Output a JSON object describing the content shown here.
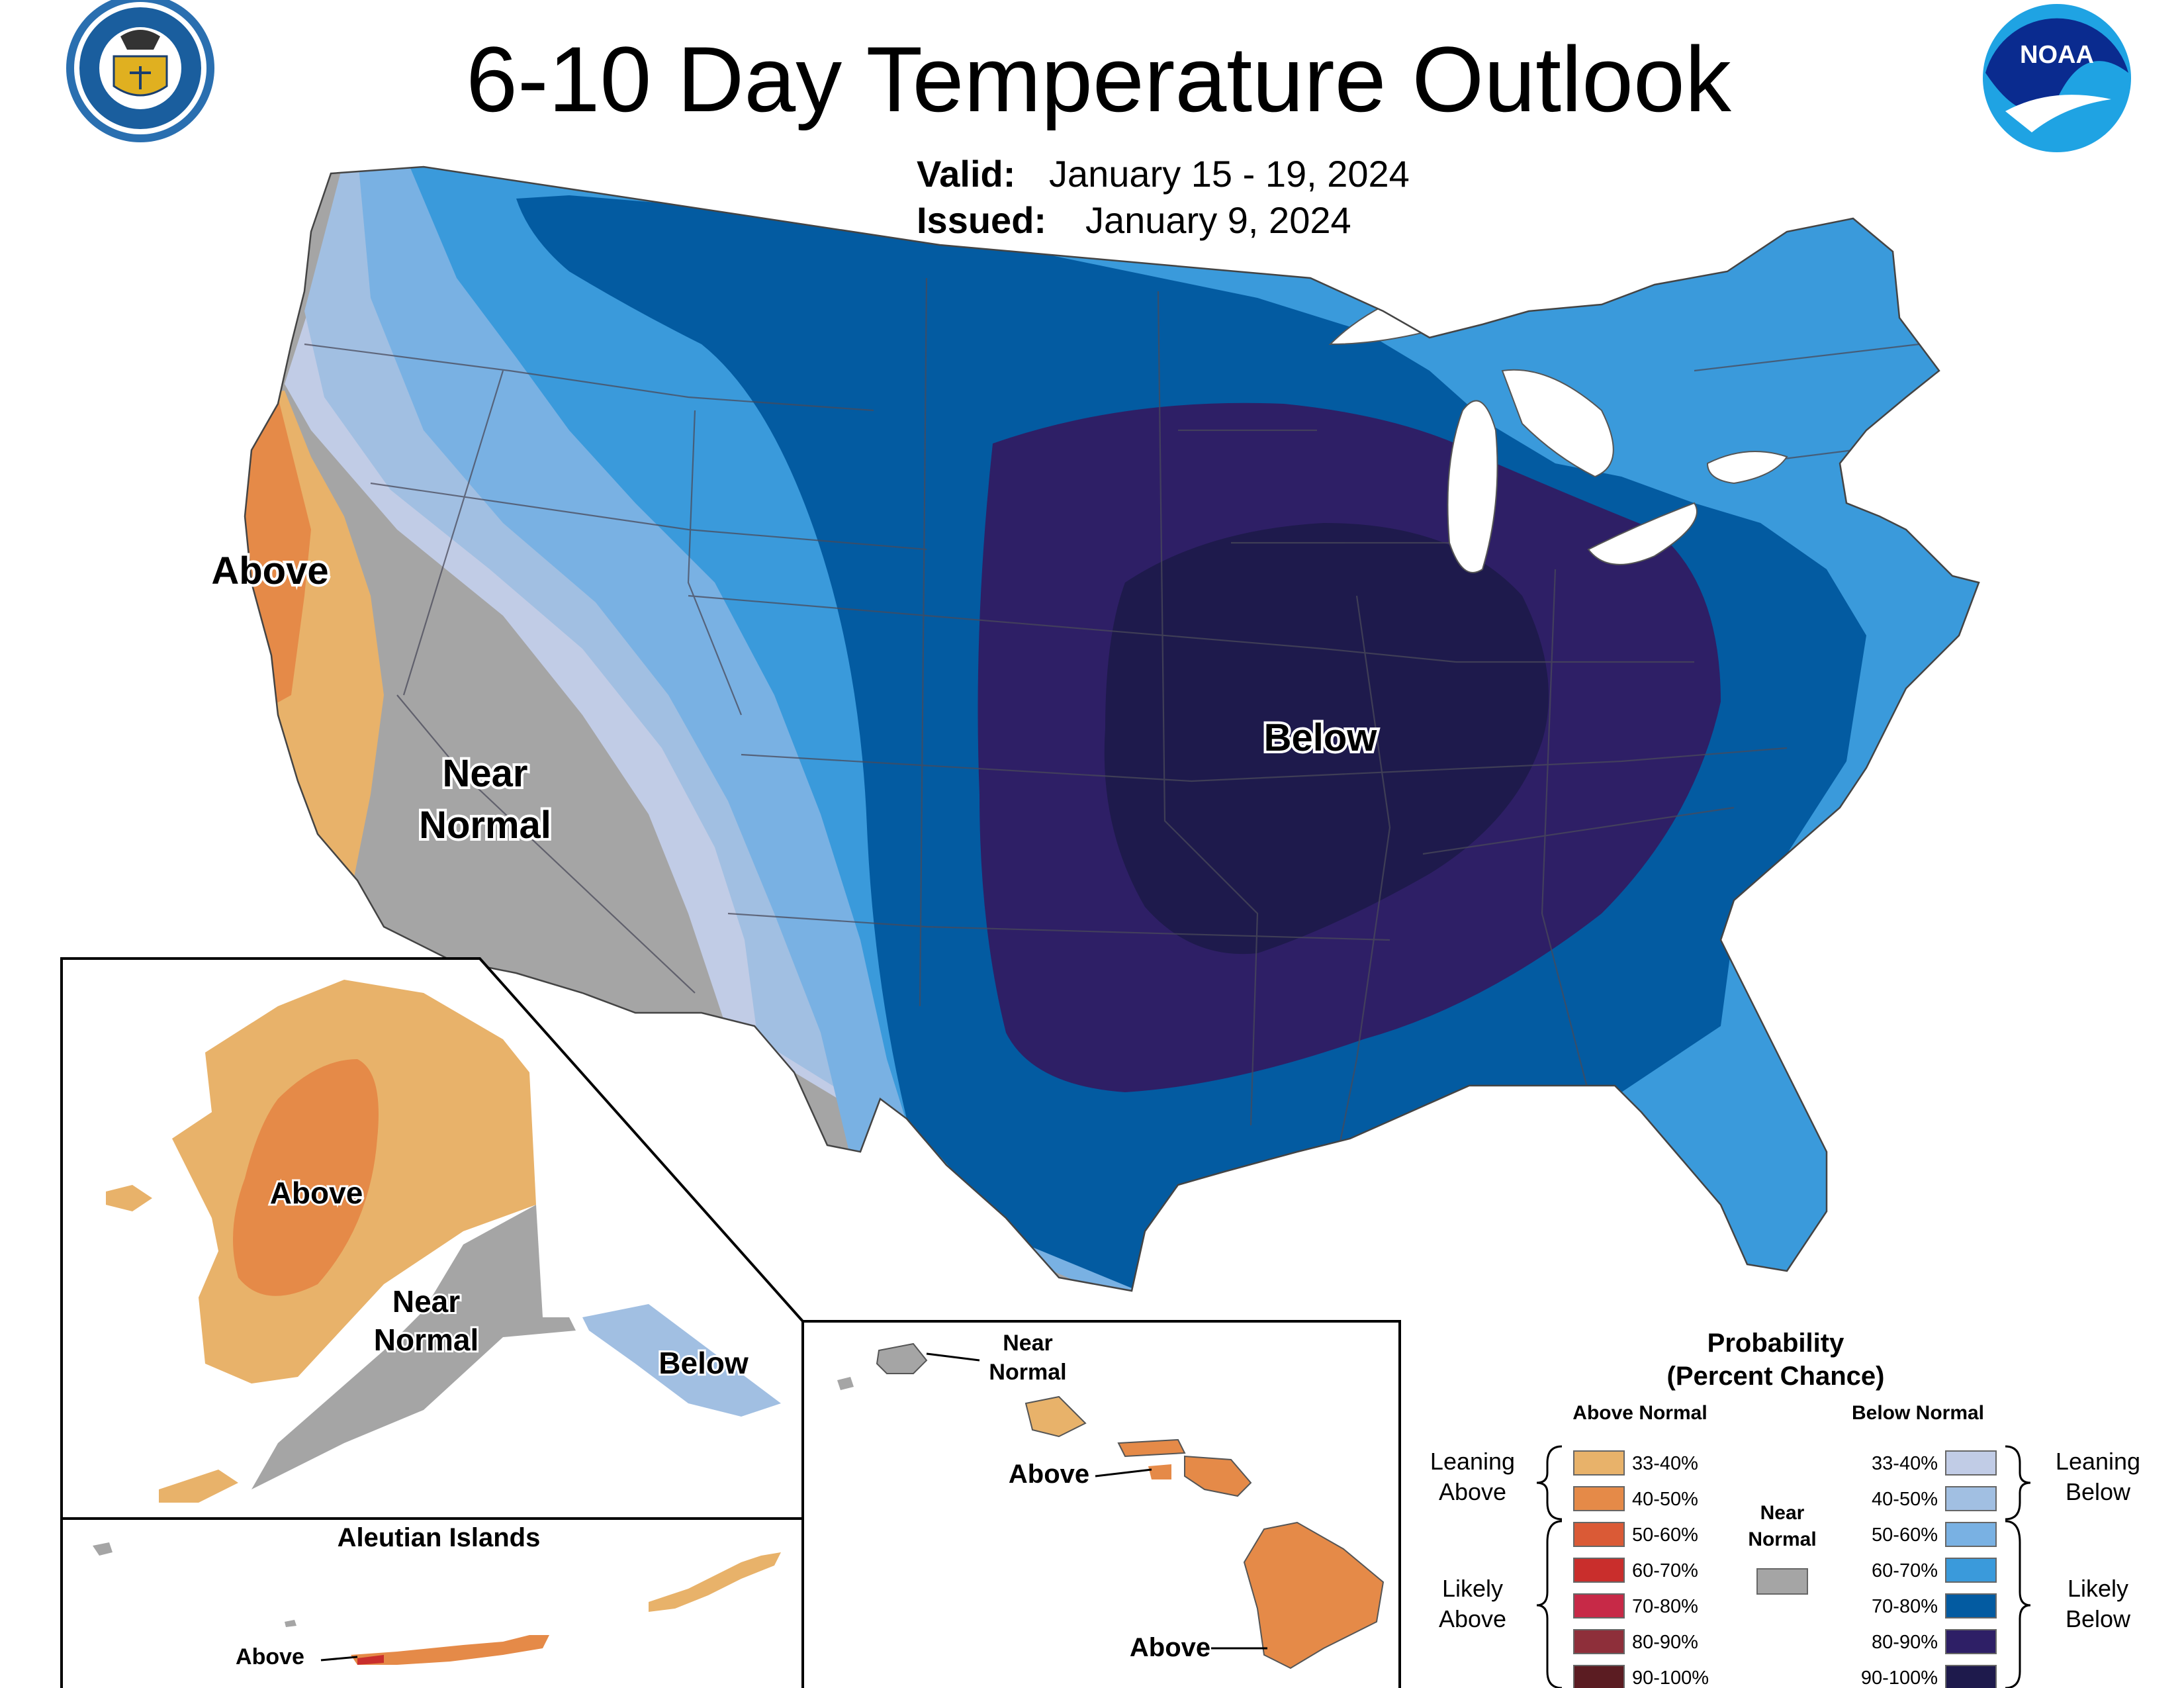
{
  "title": "6-10 Day Temperature Outlook",
  "valid_label": "Valid:",
  "valid_value": "January 15 - 19, 2024",
  "issued_label": "Issued:",
  "issued_value": "January 9, 2024",
  "logos": {
    "commerce_seal_text": [
      "DEPARTMENT OF COMMERCE",
      "UNITED STATES OF AMERICA"
    ],
    "noaa_text": "NOAA"
  },
  "colors": {
    "above_33_40": "#E8B26A",
    "above_40_50": "#E58A48",
    "above_50_60": "#DA5A36",
    "above_60_70": "#C92E2C",
    "above_70_80": "#C72947",
    "above_80_90": "#8E2F3A",
    "above_90_100": "#5B1C22",
    "near_normal": "#A5A5A5",
    "below_33_40": "#C1CCE6",
    "below_40_50": "#A1BFE2",
    "below_50_60": "#79B1E3",
    "below_60_70": "#3A9ADB",
    "below_70_80": "#035BA1",
    "below_80_90": "#2E1F66",
    "below_90_100": "#1E1A4C",
    "lakes": "#ffffff"
  },
  "map_labels": {
    "conus_above": "Above",
    "conus_near_line1": "Near",
    "conus_near_line2": "Normal",
    "conus_below": "Below",
    "alaska_above": "Above",
    "alaska_near_line1": "Near",
    "alaska_near_line2": "Normal",
    "alaska_below": "Below",
    "aleutian_title": "Aleutian Islands",
    "aleutian_above": "Above",
    "hawaii_near_line1": "Near",
    "hawaii_near_line2": "Normal",
    "hawaii_above_1": "Above",
    "hawaii_above_2": "Above"
  },
  "legend": {
    "heading_line1": "Probability",
    "heading_line2": "(Percent Chance)",
    "above_heading": "Above Normal",
    "below_heading": "Below Normal",
    "near_line1": "Near",
    "near_line2": "Normal",
    "leaning_above_1": "Leaning",
    "leaning_above_2": "Above",
    "likely_above_1": "Likely",
    "likely_above_2": "Above",
    "leaning_below_1": "Leaning",
    "leaning_below_2": "Below",
    "likely_below_1": "Likely",
    "likely_below_2": "Below",
    "above_items": [
      {
        "label": "33-40%",
        "color": "#E8B26A"
      },
      {
        "label": "40-50%",
        "color": "#E58A48"
      },
      {
        "label": "50-60%",
        "color": "#DA5A36"
      },
      {
        "label": "60-70%",
        "color": "#C92E2C"
      },
      {
        "label": "70-80%",
        "color": "#C72947"
      },
      {
        "label": "80-90%",
        "color": "#8E2F3A"
      },
      {
        "label": "90-100%",
        "color": "#5B1C22"
      }
    ],
    "below_items": [
      {
        "label": "33-40%",
        "color": "#C1CCE6"
      },
      {
        "label": "40-50%",
        "color": "#A1BFE2"
      },
      {
        "label": "50-60%",
        "color": "#79B1E3"
      },
      {
        "label": "60-70%",
        "color": "#3A9ADB"
      },
      {
        "label": "70-80%",
        "color": "#035BA1"
      },
      {
        "label": "80-90%",
        "color": "#2E1F66"
      },
      {
        "label": "90-100%",
        "color": "#1E1A4C"
      }
    ]
  }
}
